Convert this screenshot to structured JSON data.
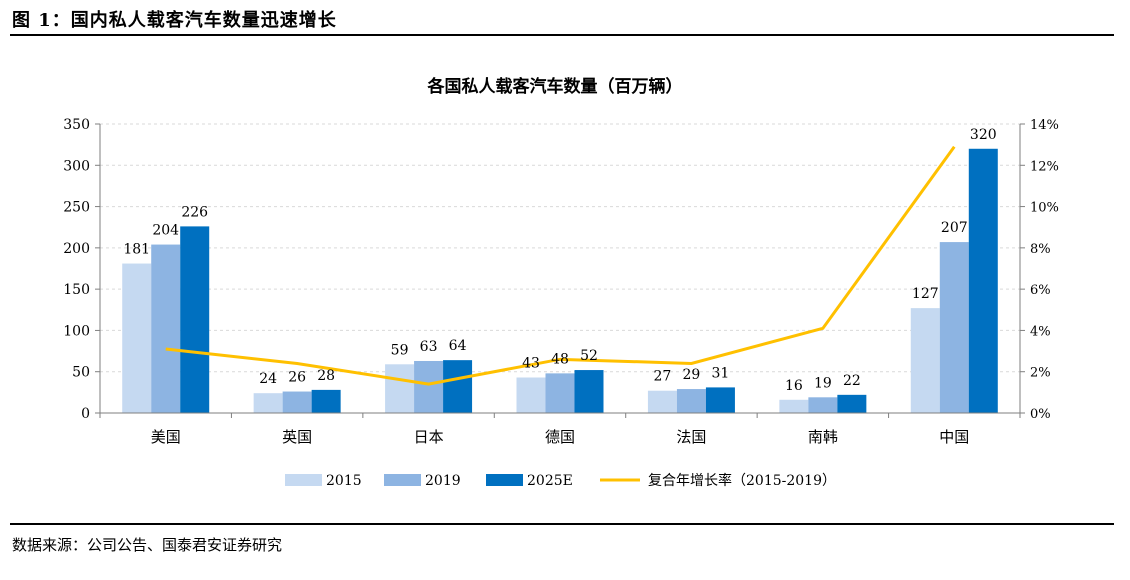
{
  "figure": {
    "title": "图 1：国内私人载客汽车数量迅速增长",
    "source": "数据来源：公司公告、国泰君安证券研究"
  },
  "colors": {
    "s2015": "#c5d9f1",
    "s2019": "#8db4e2",
    "s2025": "#0070c0",
    "cagr": "#ffc000",
    "grid": "#d9d9d9",
    "axis": "#7f7f7f"
  },
  "chart_data": {
    "type": "bar",
    "title": "各国私人载客汽车数量（百万辆）",
    "categories": [
      "美国",
      "英国",
      "日本",
      "德国",
      "法国",
      "南韩",
      "中国"
    ],
    "series": [
      {
        "name": "2015",
        "values": [
          181,
          24,
          59,
          43,
          27,
          16,
          127
        ]
      },
      {
        "name": "2019",
        "values": [
          204,
          26,
          63,
          48,
          29,
          19,
          207
        ]
      },
      {
        "name": "2025E",
        "values": [
          226,
          28,
          64,
          52,
          31,
          22,
          320
        ]
      }
    ],
    "line_series": {
      "name": "复合年增长率（2015-2019）",
      "axis": "right",
      "values": [
        3.1,
        2.4,
        1.4,
        2.6,
        2.4,
        4.1,
        12.9
      ]
    },
    "ylim": [
      0,
      350
    ],
    "yticks": [
      "0",
      "50",
      "100",
      "150",
      "200",
      "250",
      "300",
      "350"
    ],
    "y2lim": [
      0,
      14
    ],
    "y2ticks": [
      "0%",
      "2%",
      "4%",
      "6%",
      "8%",
      "10%",
      "12%",
      "14%"
    ],
    "grid": true,
    "legend": "bottom"
  }
}
